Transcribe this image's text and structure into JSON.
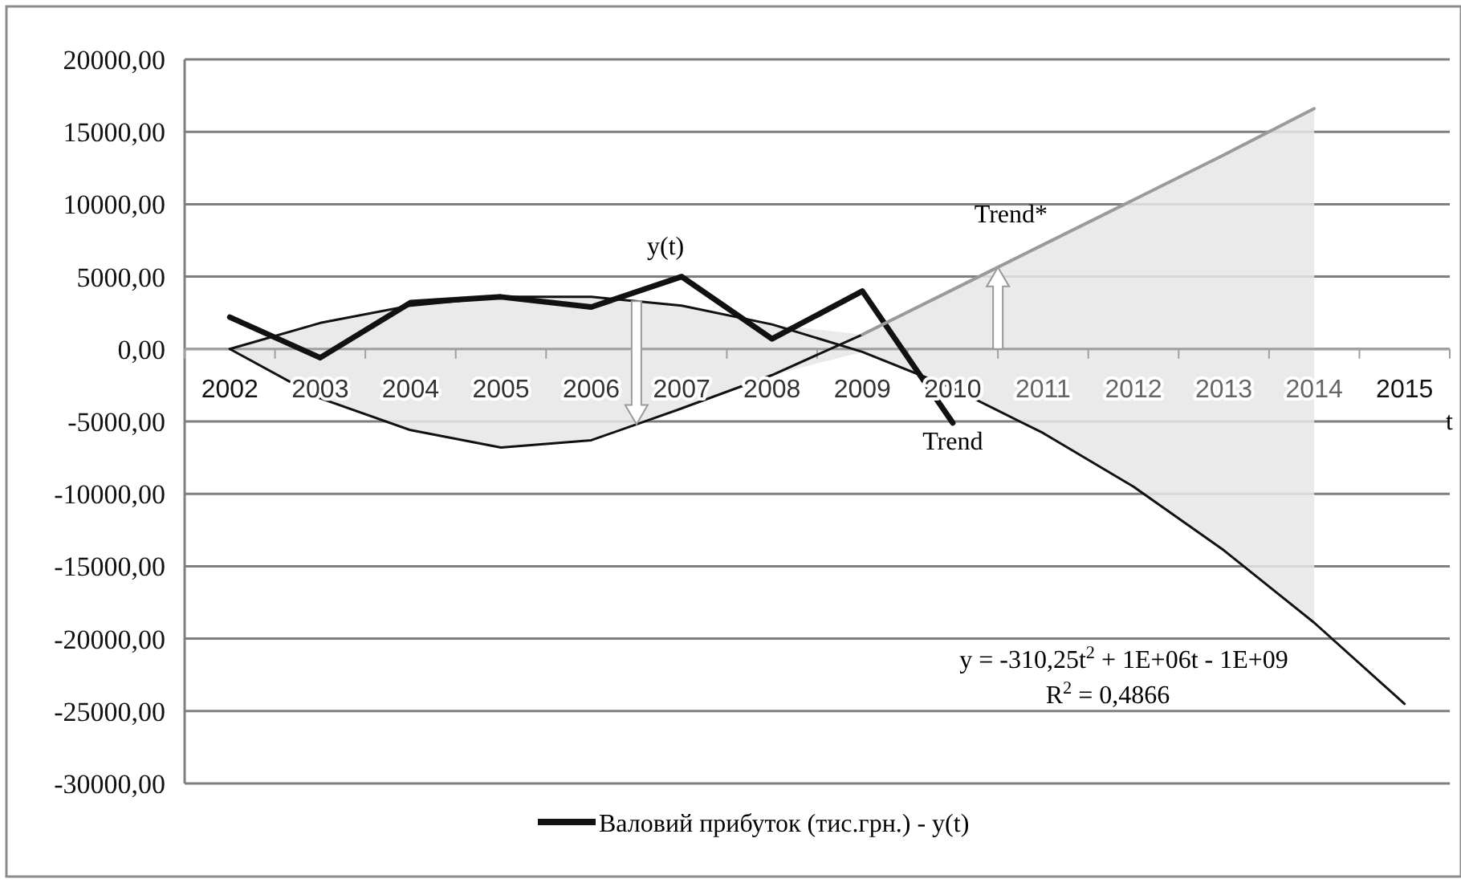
{
  "chart_data": {
    "type": "line",
    "xlabel": "t",
    "categories": [
      "2002",
      "2003",
      "2004",
      "2005",
      "2006",
      "2007",
      "2008",
      "2009",
      "2010",
      "2011",
      "2012",
      "2013",
      "2014",
      "2015"
    ],
    "series": [
      {
        "name": "Валовий прибуток (тис.грн.) - y(t)",
        "color": "#111111",
        "values": [
          2200,
          -600,
          3200,
          3600,
          2900,
          5000,
          700,
          4000,
          -5100,
          null,
          null,
          null,
          null,
          null
        ]
      },
      {
        "color": "#111111",
        "values": [
          0,
          1800,
          3000,
          3600,
          3600,
          3000,
          1700,
          -200,
          -2700,
          -5800,
          -9500,
          -13900,
          -18900,
          -24500
        ],
        "lower": [
          0,
          -3400,
          -5600,
          -6800,
          -6300,
          -4100,
          -1800,
          -200,
          -2700,
          -5800,
          -9500,
          -13900,
          -18900,
          null
        ],
        "upper": [
          0,
          1800,
          3000,
          3600,
          3600,
          3000,
          1700,
          1000,
          4100,
          7200,
          10300,
          13400,
          16600,
          null
        ]
      },
      {
        "color": "#111111",
        "values": [
          0,
          -3400,
          -5600,
          -6800,
          -6300,
          -4100,
          -1800,
          1000,
          null,
          null,
          null,
          null,
          null,
          null
        ]
      },
      {
        "color": "#9a9a9a",
        "values": [
          null,
          null,
          null,
          null,
          null,
          null,
          null,
          1000,
          4100,
          7200,
          10300,
          13400,
          16600,
          null
        ]
      }
    ],
    "ylim": [
      -30000,
      20000
    ],
    "yticks": [
      {
        "value": -30000,
        "label": "-30000,00"
      },
      {
        "value": -25000,
        "label": "-25000,00"
      },
      {
        "value": -20000,
        "label": "-20000,00"
      },
      {
        "value": -15000,
        "label": "-15000,00"
      },
      {
        "value": -10000,
        "label": "-10000,00"
      },
      {
        "value": -5000,
        "label": "-5000,00"
      },
      {
        "value": 0,
        "label": "0,00"
      },
      {
        "value": 5000,
        "label": "5000,00"
      },
      {
        "value": 10000,
        "label": "10000,00"
      },
      {
        "value": 15000,
        "label": "15000,00"
      },
      {
        "value": 20000,
        "label": "20000,00"
      }
    ],
    "grid": "y",
    "legend": "bottom",
    "marker": "none",
    "line_style": "solid",
    "annotations": [
      {
        "text": "y(t)",
        "x": "2007",
        "y": 5000
      },
      {
        "text": "Trend*",
        "x": "2011",
        "y": 7200
      },
      {
        "text": "Trend",
        "x": "2010",
        "y": -2700
      },
      "y = -310,25t$^{2}$ + 1E+06t - 1E+09",
      "R$^{2}$ = 0,4866"
    ]
  }
}
